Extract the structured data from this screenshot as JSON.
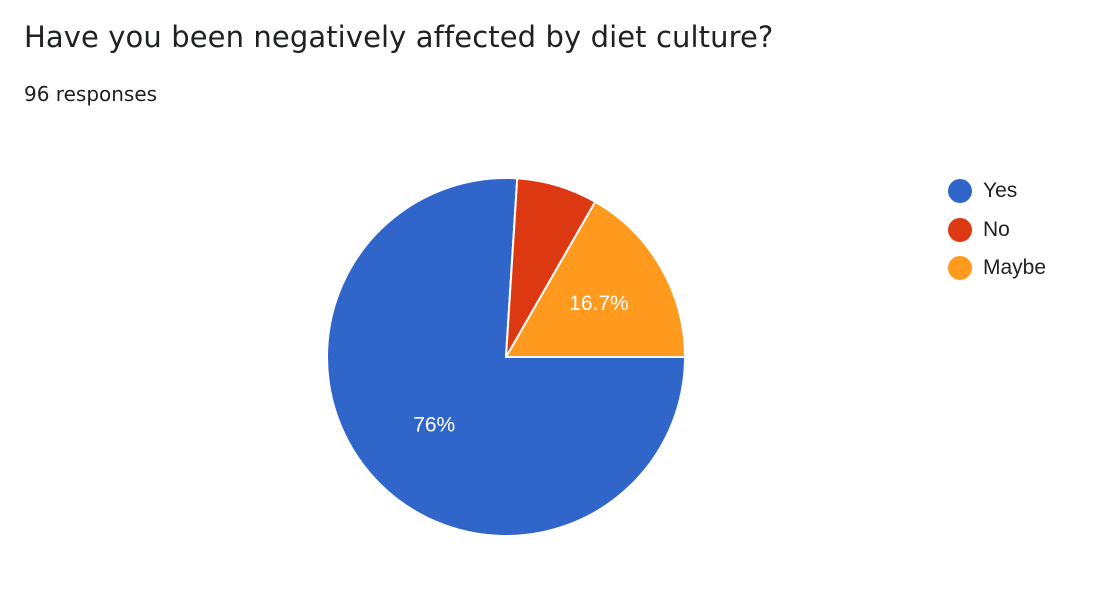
{
  "question": {
    "title": "Have you been negatively affected by diet culture?",
    "responses": "96 responses"
  },
  "chart_data": {
    "type": "pie",
    "title": "Have you been negatively affected by diet culture?",
    "categories": [
      "Yes",
      "No",
      "Maybe"
    ],
    "values": [
      76,
      7.3,
      16.7
    ],
    "counts": [
      73,
      7,
      16
    ],
    "slice_labels": [
      "76%",
      "",
      "16.7%"
    ],
    "colors": [
      "#3066c9",
      "#dc3912",
      "#ff9a1f"
    ],
    "legend_position": "right"
  }
}
